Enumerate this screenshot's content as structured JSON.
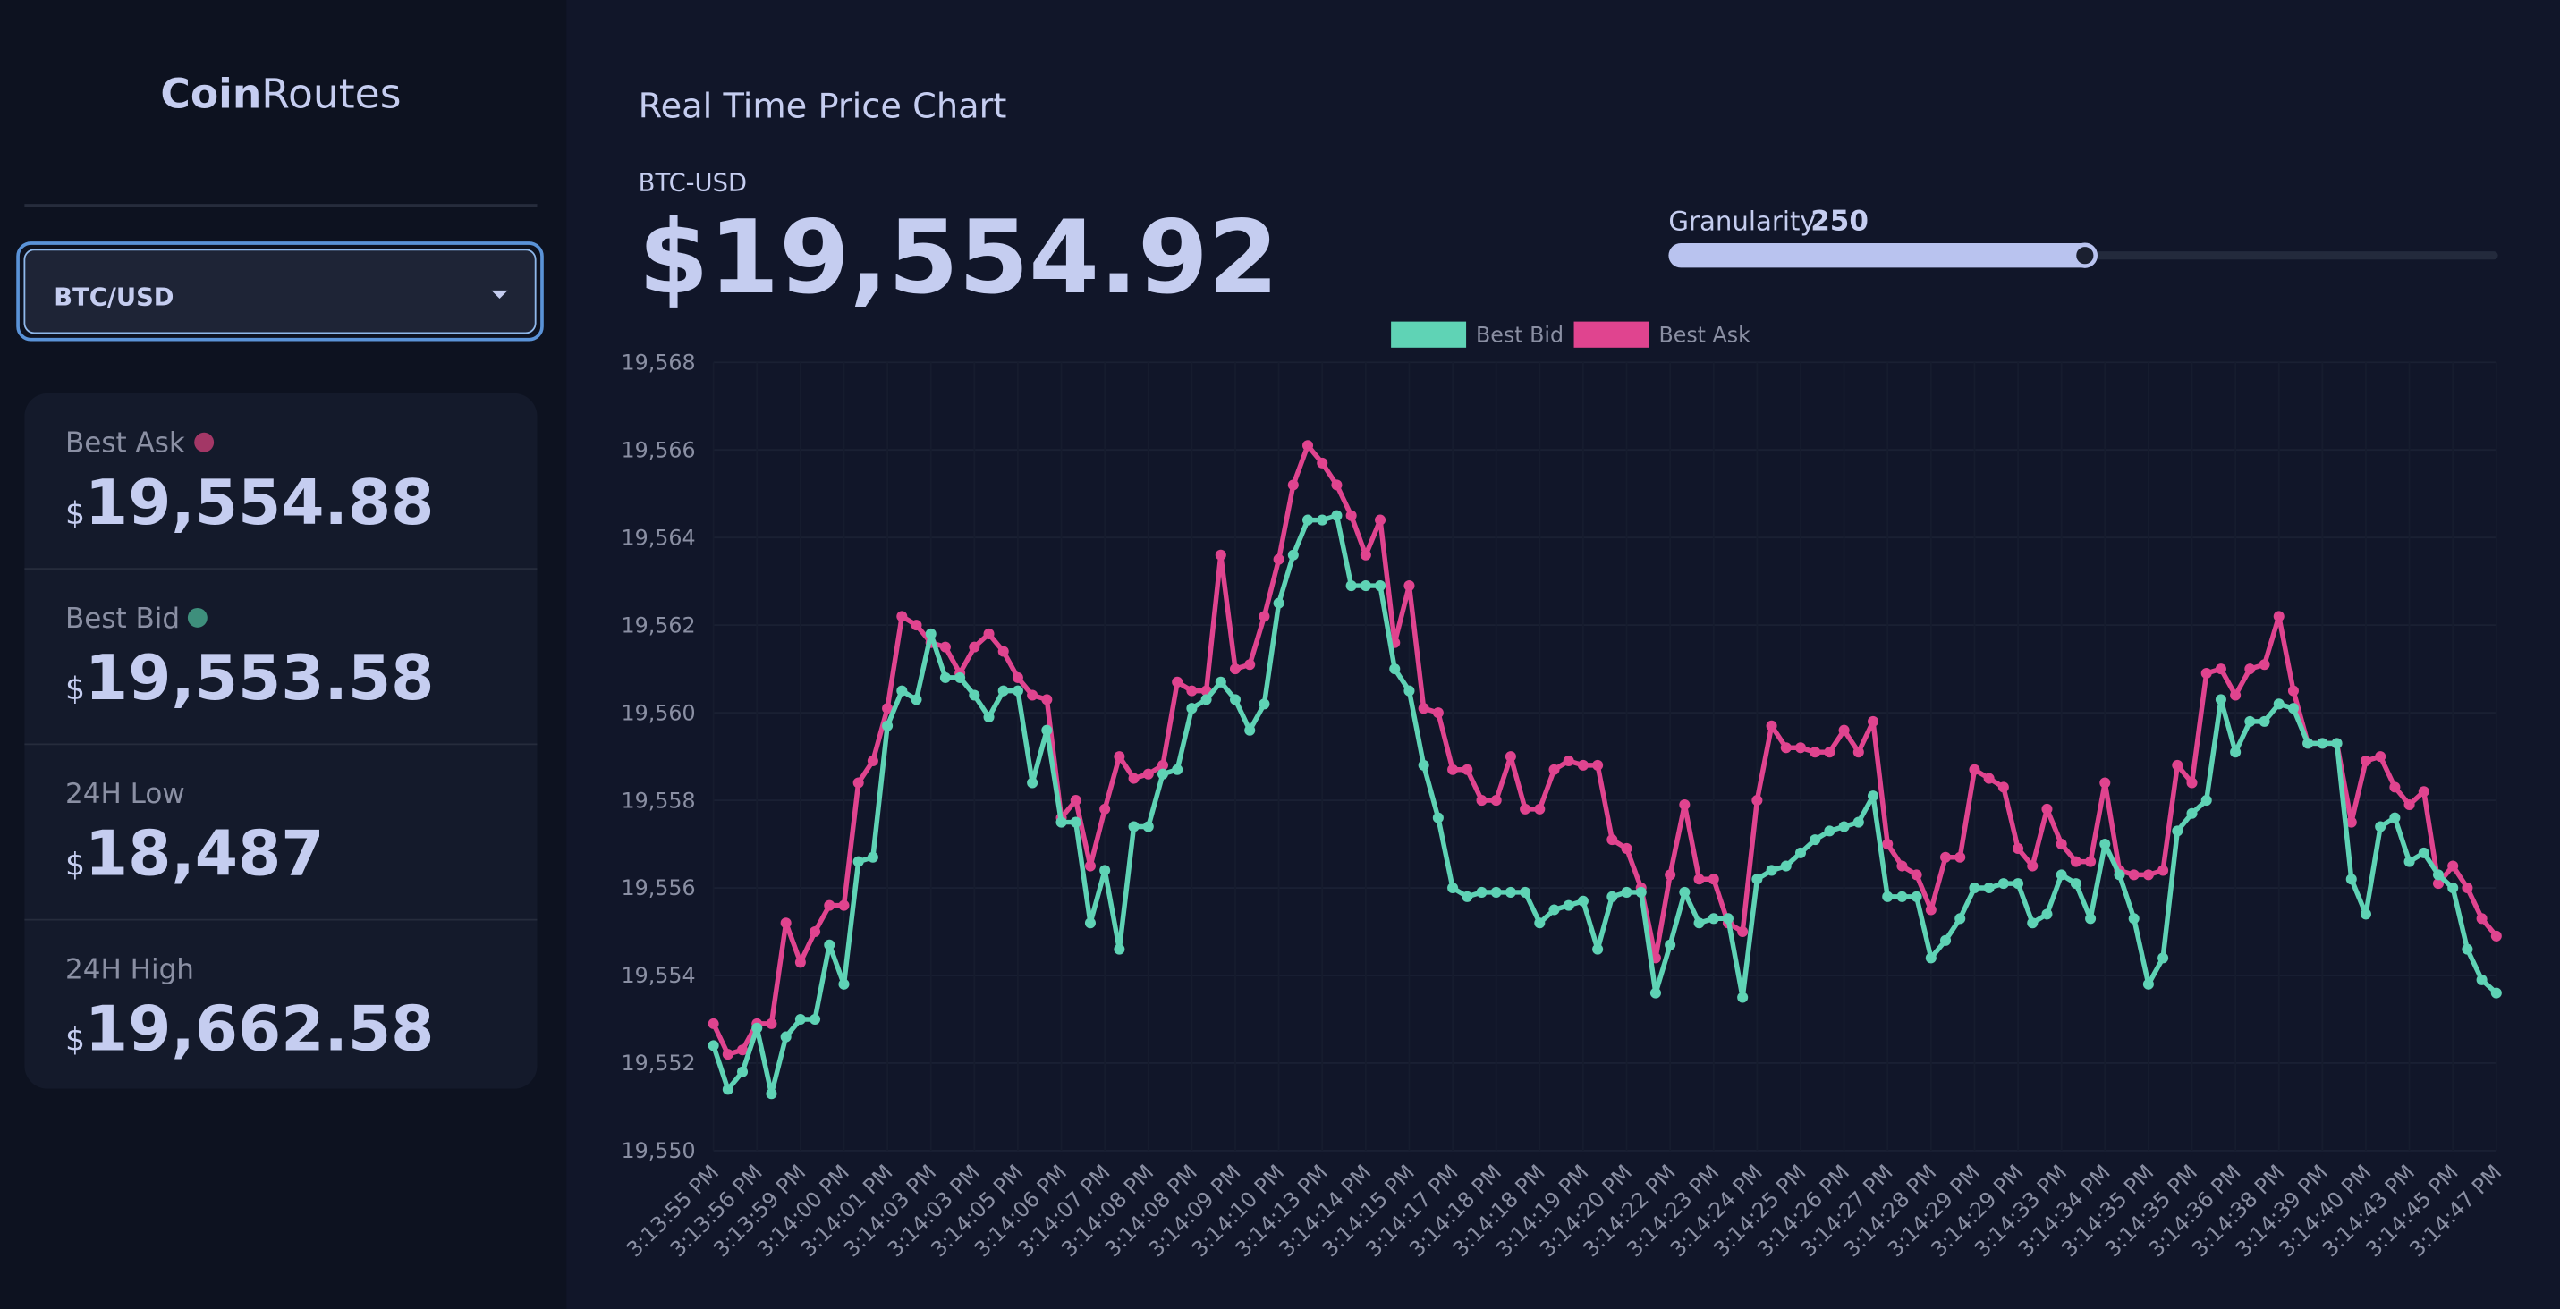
{
  "sidebar": {
    "logo": {
      "bold": "Coin",
      "rest": "Routes"
    },
    "pair_select": "BTC/USD",
    "stats": [
      {
        "label": "Best Ask",
        "currency": "$",
        "value": "19,554.88"
      },
      {
        "label": "Best Bid",
        "currency": "$",
        "value": "19,553.58"
      },
      {
        "label": "24H Low",
        "currency": "$",
        "value": "18,487"
      },
      {
        "label": "24H High",
        "currency": "$",
        "value": "19,662.58"
      }
    ]
  },
  "main": {
    "title": "Real Time Price Chart",
    "pair": "BTC-USD",
    "price": "$19,554.92",
    "granularity": {
      "label": "Granularity",
      "value": "250"
    }
  },
  "chart_data": {
    "type": "line",
    "categories": [
      "3:13:55 PM",
      null,
      null,
      "3:13:56 PM",
      null,
      null,
      "3:13:59 PM",
      null,
      null,
      "3:14:00 PM",
      null,
      null,
      "3:14:01 PM",
      null,
      null,
      "3:14:03 PM",
      null,
      null,
      "3:14:03 PM",
      null,
      null,
      "3:14:05 PM",
      null,
      null,
      "3:14:06 PM",
      null,
      null,
      "3:14:07 PM",
      null,
      null,
      "3:14:08 PM",
      null,
      null,
      "3:14:08 PM",
      null,
      null,
      "3:14:09 PM",
      null,
      null,
      "3:14:10 PM",
      null,
      null,
      "3:14:13 PM",
      null,
      null,
      "3:14:14 PM",
      null,
      null,
      "3:14:15 PM",
      null,
      null,
      "3:14:17 PM",
      null,
      null,
      "3:14:18 PM",
      null,
      null,
      "3:14:18 PM",
      null,
      null,
      "3:14:19 PM",
      null,
      null,
      "3:14:20 PM",
      null,
      null,
      "3:14:22 PM",
      null,
      null,
      "3:14:23 PM",
      null,
      null,
      "3:14:24 PM",
      null,
      null,
      "3:14:25 PM",
      null,
      null,
      "3:14:26 PM",
      null,
      null,
      "3:14:27 PM",
      null,
      null,
      "3:14:28 PM",
      null,
      null,
      "3:14:29 PM",
      null,
      null,
      "3:14:29 PM",
      null,
      null,
      "3:14:33 PM",
      null,
      null,
      "3:14:34 PM",
      null,
      null,
      "3:14:35 PM",
      null,
      null,
      "3:14:35 PM",
      null,
      null,
      "3:14:36 PM",
      null,
      null,
      "3:14:38 PM",
      null,
      null,
      "3:14:39 PM",
      null,
      null,
      "3:14:40 PM",
      null,
      null,
      "3:14:43 PM",
      null,
      null,
      "3:14:45 PM",
      null,
      null,
      "3:14:47 PM"
    ],
    "series": [
      {
        "name": "Best Bid",
        "color": "#5fd3b5",
        "values": [
          19552.4,
          19551.4,
          19551.8,
          19552.8,
          19551.3,
          19552.6,
          19553.0,
          19553.0,
          19554.7,
          19553.8,
          19556.6,
          19556.7,
          19559.7,
          19560.5,
          19560.3,
          19561.8,
          19560.8,
          19560.8,
          19560.4,
          19559.9,
          19560.5,
          19560.5,
          19558.4,
          19559.6,
          19557.5,
          19557.5,
          19555.2,
          19556.4,
          19554.6,
          19557.4,
          19557.4,
          19558.6,
          19558.7,
          19560.1,
          19560.3,
          19560.7,
          19560.3,
          19559.6,
          19560.2,
          19562.5,
          19563.6,
          19564.4,
          19564.4,
          19564.5,
          19562.9,
          19562.9,
          19562.9,
          19561.0,
          19560.5,
          19558.8,
          19557.6,
          19556.0,
          19555.8,
          19555.9,
          19555.9,
          19555.9,
          19555.9,
          19555.2,
          19555.5,
          19555.6,
          19555.7,
          19554.6,
          19555.8,
          19555.9,
          19555.9,
          19553.6,
          19554.7,
          19555.9,
          19555.2,
          19555.3,
          19555.3,
          19553.5,
          19556.2,
          19556.4,
          19556.5,
          19556.8,
          19557.1,
          19557.3,
          19557.4,
          19557.5,
          19558.1,
          19555.8,
          19555.8,
          19555.8,
          19554.4,
          19554.8,
          19555.3,
          19556.0,
          19556.0,
          19556.1,
          19556.1,
          19555.2,
          19555.4,
          19556.3,
          19556.1,
          19555.3,
          19557.0,
          19556.3,
          19555.3,
          19553.8,
          19554.4,
          19557.3,
          19557.7,
          19558.0,
          19560.3,
          19559.1,
          19559.8,
          19559.8,
          19560.2,
          19560.1,
          19559.3,
          19559.3,
          19559.3,
          19556.2,
          19555.4,
          19557.4,
          19557.6,
          19556.6,
          19556.8,
          19556.3,
          19556.0,
          19554.6,
          19553.9,
          19553.6
        ]
      },
      {
        "name": "Best Ask",
        "color": "#e0448f",
        "values": [
          19552.9,
          19552.2,
          19552.3,
          19552.9,
          19552.9,
          19555.2,
          19554.3,
          19555.0,
          19555.6,
          19555.6,
          19558.4,
          19558.9,
          19560.1,
          19562.2,
          19562.0,
          19561.6,
          19561.5,
          19560.9,
          19561.5,
          19561.8,
          19561.4,
          19560.8,
          19560.4,
          19560.3,
          19557.6,
          19558.0,
          19556.5,
          19557.8,
          19559.0,
          19558.5,
          19558.6,
          19558.8,
          19560.7,
          19560.5,
          19560.5,
          19563.6,
          19561.0,
          19561.1,
          19562.2,
          19563.5,
          19565.2,
          19566.1,
          19565.7,
          19565.2,
          19564.5,
          19563.6,
          19564.4,
          19561.6,
          19562.9,
          19560.1,
          19560.0,
          19558.7,
          19558.7,
          19558.0,
          19558.0,
          19559.0,
          19557.8,
          19557.8,
          19558.7,
          19558.9,
          19558.8,
          19558.8,
          19557.1,
          19556.9,
          19556.0,
          19554.4,
          19556.3,
          19557.9,
          19556.2,
          19556.2,
          19555.2,
          19555.0,
          19558.0,
          19559.7,
          19559.2,
          19559.2,
          19559.1,
          19559.1,
          19559.6,
          19559.1,
          19559.8,
          19557.0,
          19556.5,
          19556.3,
          19555.5,
          19556.7,
          19556.7,
          19558.7,
          19558.5,
          19558.3,
          19556.9,
          19556.5,
          19557.8,
          19557.0,
          19556.6,
          19556.6,
          19558.4,
          19556.4,
          19556.3,
          19556.3,
          19556.4,
          19558.8,
          19558.4,
          19560.9,
          19561.0,
          19560.4,
          19561.0,
          19561.1,
          19562.2,
          19560.5,
          19559.3,
          19559.3,
          19559.3,
          19557.5,
          19558.9,
          19559.0,
          19558.3,
          19557.9,
          19558.2,
          19556.1,
          19556.5,
          19556.0,
          19555.3,
          19554.9
        ]
      }
    ],
    "ylim": [
      19550,
      19568
    ],
    "yticks": [
      {
        "value": 19550,
        "label": "19,550"
      },
      {
        "value": 19552,
        "label": "19,552"
      },
      {
        "value": 19554,
        "label": "19,554"
      },
      {
        "value": 19556,
        "label": "19,556"
      },
      {
        "value": 19558,
        "label": "19,558"
      },
      {
        "value": 19560,
        "label": "19,560"
      },
      {
        "value": 19562,
        "label": "19,562"
      },
      {
        "value": 19564,
        "label": "19,564"
      },
      {
        "value": 19566,
        "label": "19,566"
      },
      {
        "value": 19568,
        "label": "19,568"
      }
    ],
    "grid": true,
    "legend": "top"
  }
}
